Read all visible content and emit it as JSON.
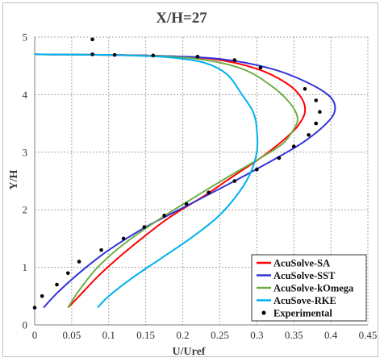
{
  "chart_data": {
    "type": "line",
    "title": "X/H=27",
    "xlabel": "U/Uref",
    "ylabel": "Y/H",
    "xlim": [
      0,
      0.45
    ],
    "ylim": [
      0,
      5
    ],
    "x_ticks": [
      "0",
      "0.05",
      "0.1",
      "0.15",
      "0.2",
      "0.25",
      "0.3",
      "0.35",
      "0.4",
      "0.45"
    ],
    "y_ticks": [
      "0",
      "1",
      "2",
      "3",
      "4",
      "5"
    ],
    "grid": "dotted",
    "legend_position": "bottom-right",
    "series": [
      {
        "name": "AcuSolve-SA",
        "color": "#ff0000",
        "points": [
          [
            0.045,
            0.3
          ],
          [
            0.06,
            0.5
          ],
          [
            0.09,
            0.9
          ],
          [
            0.13,
            1.35
          ],
          [
            0.18,
            1.85
          ],
          [
            0.23,
            2.25
          ],
          [
            0.27,
            2.6
          ],
          [
            0.305,
            2.9
          ],
          [
            0.335,
            3.2
          ],
          [
            0.355,
            3.45
          ],
          [
            0.365,
            3.7
          ],
          [
            0.36,
            3.95
          ],
          [
            0.34,
            4.2
          ],
          [
            0.3,
            4.45
          ],
          [
            0.24,
            4.62
          ],
          [
            0.15,
            4.68
          ],
          [
            0.0,
            4.7
          ]
        ]
      },
      {
        "name": "AcuSolve-SST",
        "color": "#3333dd",
        "points": [
          [
            0.012,
            0.3
          ],
          [
            0.03,
            0.55
          ],
          [
            0.06,
            0.9
          ],
          [
            0.1,
            1.3
          ],
          [
            0.15,
            1.7
          ],
          [
            0.21,
            2.1
          ],
          [
            0.27,
            2.5
          ],
          [
            0.32,
            2.85
          ],
          [
            0.36,
            3.15
          ],
          [
            0.39,
            3.45
          ],
          [
            0.405,
            3.7
          ],
          [
            0.4,
            3.95
          ],
          [
            0.37,
            4.2
          ],
          [
            0.32,
            4.45
          ],
          [
            0.25,
            4.62
          ],
          [
            0.15,
            4.68
          ],
          [
            0.0,
            4.7
          ]
        ]
      },
      {
        "name": "AcuSolve-kOmega",
        "color": "#70ad47",
        "points": [
          [
            0.045,
            0.3
          ],
          [
            0.06,
            0.6
          ],
          [
            0.085,
            1.0
          ],
          [
            0.12,
            1.4
          ],
          [
            0.17,
            1.85
          ],
          [
            0.22,
            2.25
          ],
          [
            0.265,
            2.6
          ],
          [
            0.305,
            2.9
          ],
          [
            0.335,
            3.15
          ],
          [
            0.35,
            3.4
          ],
          [
            0.355,
            3.6
          ],
          [
            0.345,
            3.85
          ],
          [
            0.32,
            4.15
          ],
          [
            0.28,
            4.45
          ],
          [
            0.22,
            4.62
          ],
          [
            0.14,
            4.68
          ],
          [
            0.0,
            4.7
          ]
        ]
      },
      {
        "name": "AcuSove-RKE",
        "color": "#00b0f0",
        "points": [
          [
            0.085,
            0.3
          ],
          [
            0.1,
            0.5
          ],
          [
            0.13,
            0.8
          ],
          [
            0.17,
            1.15
          ],
          [
            0.21,
            1.5
          ],
          [
            0.245,
            1.85
          ],
          [
            0.27,
            2.2
          ],
          [
            0.29,
            2.6
          ],
          [
            0.3,
            3.0
          ],
          [
            0.3,
            3.4
          ],
          [
            0.295,
            3.7
          ],
          [
            0.28,
            4.0
          ],
          [
            0.26,
            4.35
          ],
          [
            0.23,
            4.55
          ],
          [
            0.18,
            4.65
          ],
          [
            0.1,
            4.69
          ],
          [
            0.0,
            4.7
          ]
        ]
      }
    ],
    "experimental": {
      "name": "Experimental",
      "color": "#000000",
      "points": [
        [
          0.0,
          0.3
        ],
        [
          0.01,
          0.5
        ],
        [
          0.03,
          0.7
        ],
        [
          0.045,
          0.9
        ],
        [
          0.06,
          1.1
        ],
        [
          0.09,
          1.3
        ],
        [
          0.12,
          1.5
        ],
        [
          0.148,
          1.7
        ],
        [
          0.175,
          1.9
        ],
        [
          0.205,
          2.1
        ],
        [
          0.235,
          2.3
        ],
        [
          0.27,
          2.5
        ],
        [
          0.3,
          2.7
        ],
        [
          0.33,
          2.9
        ],
        [
          0.35,
          3.1
        ],
        [
          0.37,
          3.3
        ],
        [
          0.38,
          3.5
        ],
        [
          0.385,
          3.7
        ],
        [
          0.38,
          3.9
        ],
        [
          0.365,
          4.1
        ],
        [
          0.305,
          4.47
        ],
        [
          0.27,
          4.6
        ],
        [
          0.22,
          4.66
        ],
        [
          0.16,
          4.68
        ],
        [
          0.108,
          4.69
        ],
        [
          0.078,
          4.7
        ],
        [
          0.078,
          4.96
        ]
      ]
    }
  }
}
